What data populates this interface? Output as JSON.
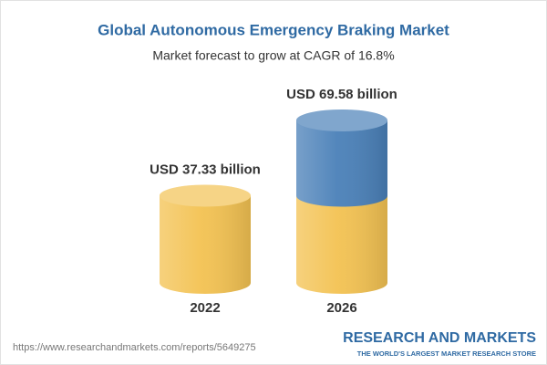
{
  "chart_data": {
    "type": "bar",
    "title": "Global Autonomous Emergency Braking Market",
    "subtitle": "Market forecast to grow at CAGR of 16.8%",
    "categories": [
      "2022",
      "2026"
    ],
    "values": [
      37.33,
      69.58
    ],
    "value_labels": [
      "USD 37.33 billion",
      "USD 69.58 billion"
    ],
    "color": "#f3c252",
    "growth_color": "#4a80b8"
  },
  "footer": {
    "url": "https://www.researchandmarkets.com/reports/5649275",
    "brand": "RESEARCH AND MARKETS",
    "tagline": "THE WORLD'S LARGEST MARKET RESEARCH STORE"
  }
}
